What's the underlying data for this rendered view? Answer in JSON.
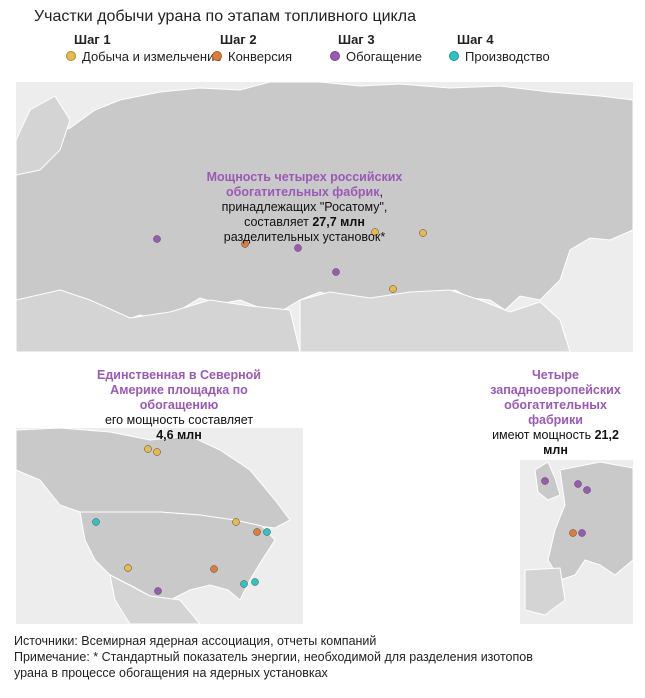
{
  "title": "Участки добычи урана по этапам топливного цикла",
  "colors": {
    "step1": "#e9b949",
    "step2": "#e07c3a",
    "step3": "#9b59b6",
    "step4": "#2ec4c4",
    "land": "#c9c9c9",
    "border": "#ffffff",
    "highlight": "#9b59b6"
  },
  "legend": [
    {
      "step": "Шаг 1",
      "label": "Добыча и измельчение",
      "color": "#e9b949"
    },
    {
      "step": "Шаг 2",
      "label": "Конверсия",
      "color": "#e07c3a"
    },
    {
      "step": "Шаг 3",
      "label": "Обогащение",
      "color": "#9b59b6"
    },
    {
      "step": "Шаг 4",
      "label": "Производство",
      "color": "#2ec4c4"
    }
  ],
  "russia_note": {
    "highlight": "Мощность четырех российских обогатительных фабрик",
    "suffix": ",",
    "line2": "принадлежащих \"Росатому\",",
    "line3_pre": "составляет ",
    "value": "27,7 млн",
    "line4": "разделительных установок*"
  },
  "na_note": {
    "highlight": "Единственная в Северной Америке площадка по обогащению",
    "line2": "его мощность составляет",
    "value": "4,6 млн"
  },
  "eu_note": {
    "highlight": "Четыре западноевропейских обогатительных фабрики",
    "line2_pre": "имеют мощность ",
    "value": "21,2 млн"
  },
  "footer": {
    "sources": "Источники: Всемирная ядерная ассоциация, отчеты компаний",
    "note_line1": "Примечание: * Стандартный показатель энергии, необходимой для разделения изотопов",
    "note_line2": "урана в процессе обогащения на ядерных установках"
  }
}
